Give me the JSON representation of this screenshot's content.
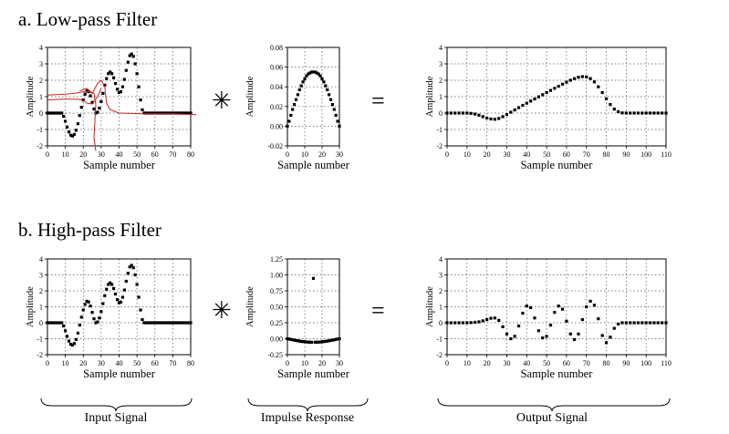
{
  "rows": [
    {
      "title": "a. Low-pass Filter"
    },
    {
      "title": "b. High-pass Filter"
    }
  ],
  "operators": {
    "convolve": "✳",
    "equals": "="
  },
  "braces": [
    {
      "label": "Input Signal"
    },
    {
      "label": "Impulse Response"
    },
    {
      "label": "Output Signal"
    }
  ],
  "colors": {
    "points": "#000000",
    "grid": "#555555",
    "annotation": "#cc2222"
  },
  "chart_data": [
    {
      "id": "lp_input",
      "type": "scatter",
      "xlabel": "Sample number",
      "ylabel": "Amplitude",
      "xlim": [
        0,
        80
      ],
      "ylim": [
        -2,
        4
      ],
      "xticks": [
        0,
        10,
        20,
        30,
        40,
        50,
        60,
        70,
        80
      ],
      "yticks": [
        -2,
        -1,
        0,
        1,
        2,
        3,
        4
      ],
      "grid": true,
      "series": [
        {
          "x": [
            0,
            1,
            2,
            3,
            4,
            5,
            6,
            7,
            8,
            9,
            10,
            11,
            12,
            13,
            14,
            15,
            16,
            17,
            18,
            19,
            20,
            21,
            22,
            23,
            24,
            25,
            26,
            27,
            28,
            29,
            30,
            31,
            32,
            33,
            34,
            35,
            36,
            37,
            38,
            39,
            40,
            41,
            42,
            43,
            44,
            45,
            46,
            47,
            48,
            49,
            50,
            51,
            52,
            53,
            54,
            55,
            56,
            57,
            58,
            59,
            60,
            61,
            62,
            63,
            64,
            65,
            66,
            67,
            68,
            69,
            70,
            71,
            72,
            73,
            74,
            75,
            76,
            77,
            78,
            79,
            80
          ],
          "y": [
            0,
            0,
            0,
            0,
            0,
            0,
            0,
            0,
            0,
            -0.2,
            -0.5,
            -0.85,
            -1.15,
            -1.35,
            -1.4,
            -1.3,
            -1.05,
            -0.65,
            -0.15,
            0.35,
            0.8,
            1.15,
            1.35,
            1.3,
            1.05,
            0.65,
            0.25,
            0,
            0.05,
            0.3,
            0.7,
            1.2,
            1.7,
            2.1,
            2.4,
            2.5,
            2.4,
            2.15,
            1.8,
            1.45,
            1.25,
            1.3,
            1.6,
            2.05,
            2.6,
            3.1,
            3.5,
            3.6,
            3.45,
            3.0,
            2.4,
            1.6,
            0.8,
            0.2,
            0,
            0,
            0,
            0,
            0,
            0,
            0,
            0,
            0,
            0,
            0,
            0,
            0,
            0,
            0,
            0,
            0,
            0,
            0,
            0,
            0,
            0,
            0,
            0,
            0,
            0,
            0
          ]
        }
      ],
      "annotation_note": "red hand-drawn strokes overlay"
    },
    {
      "id": "lp_kernel",
      "type": "scatter",
      "xlabel": "Sample number",
      "ylabel": "Amplitude",
      "xlim": [
        0,
        30
      ],
      "ylim": [
        -0.02,
        0.08
      ],
      "xticks": [
        0,
        10,
        20,
        30
      ],
      "yticks": [
        -0.02,
        0.0,
        0.02,
        0.04,
        0.06,
        0.08
      ],
      "ytick_labels": [
        "-0.02",
        "0.00",
        "0.02",
        "0.04",
        "0.06",
        "0.08"
      ],
      "grid": true,
      "series": [
        {
          "x": [
            0,
            1,
            2,
            3,
            4,
            5,
            6,
            7,
            8,
            9,
            10,
            11,
            12,
            13,
            14,
            15,
            16,
            17,
            18,
            19,
            20,
            21,
            22,
            23,
            24,
            25,
            26,
            27,
            28,
            29,
            30
          ],
          "y": [
            0.0,
            0.005,
            0.011,
            0.017,
            0.022,
            0.027,
            0.032,
            0.037,
            0.041,
            0.045,
            0.048,
            0.051,
            0.053,
            0.054,
            0.055,
            0.055,
            0.055,
            0.054,
            0.053,
            0.051,
            0.048,
            0.045,
            0.041,
            0.037,
            0.032,
            0.027,
            0.022,
            0.017,
            0.011,
            0.005,
            0.0
          ]
        }
      ]
    },
    {
      "id": "lp_output",
      "type": "scatter",
      "xlabel": "Sample number",
      "ylabel": "Amplitude",
      "xlim": [
        0,
        110
      ],
      "ylim": [
        -2,
        4
      ],
      "xticks": [
        0,
        10,
        20,
        30,
        40,
        50,
        60,
        70,
        80,
        90,
        100,
        110
      ],
      "yticks": [
        -2,
        -1,
        0,
        1,
        2,
        3,
        4
      ],
      "grid": true,
      "series": [
        {
          "x": [
            0,
            2,
            4,
            6,
            8,
            10,
            12,
            14,
            16,
            18,
            20,
            22,
            24,
            26,
            28,
            30,
            32,
            34,
            36,
            38,
            40,
            42,
            44,
            46,
            48,
            50,
            52,
            54,
            56,
            58,
            60,
            62,
            64,
            66,
            68,
            70,
            72,
            74,
            76,
            78,
            80,
            82,
            84,
            86,
            88,
            90,
            92,
            94,
            96,
            98,
            100,
            102,
            104,
            106,
            108,
            110
          ],
          "y": [
            0,
            0,
            0,
            0,
            0,
            0,
            -0.02,
            -0.06,
            -0.13,
            -0.22,
            -0.3,
            -0.36,
            -0.38,
            -0.33,
            -0.22,
            -0.09,
            0.05,
            0.19,
            0.33,
            0.47,
            0.6,
            0.73,
            0.86,
            0.99,
            1.12,
            1.25,
            1.38,
            1.51,
            1.63,
            1.76,
            1.88,
            2.0,
            2.1,
            2.18,
            2.22,
            2.2,
            2.1,
            1.9,
            1.6,
            1.25,
            0.87,
            0.52,
            0.24,
            0.08,
            0.01,
            0,
            0,
            0,
            0,
            0,
            0,
            0,
            0,
            0,
            0,
            0
          ]
        }
      ]
    },
    {
      "id": "hp_input",
      "type": "scatter",
      "xlabel": "Sample number",
      "ylabel": "Amplitude",
      "xlim": [
        0,
        80
      ],
      "ylim": [
        -2,
        4
      ],
      "xticks": [
        0,
        10,
        20,
        30,
        40,
        50,
        60,
        70,
        80
      ],
      "yticks": [
        -2,
        -1,
        0,
        1,
        2,
        3,
        4
      ],
      "grid": true,
      "series": [
        {
          "x": [
            0,
            1,
            2,
            3,
            4,
            5,
            6,
            7,
            8,
            9,
            10,
            11,
            12,
            13,
            14,
            15,
            16,
            17,
            18,
            19,
            20,
            21,
            22,
            23,
            24,
            25,
            26,
            27,
            28,
            29,
            30,
            31,
            32,
            33,
            34,
            35,
            36,
            37,
            38,
            39,
            40,
            41,
            42,
            43,
            44,
            45,
            46,
            47,
            48,
            49,
            50,
            51,
            52,
            53,
            54,
            55,
            56,
            57,
            58,
            59,
            60,
            61,
            62,
            63,
            64,
            65,
            66,
            67,
            68,
            69,
            70,
            71,
            72,
            73,
            74,
            75,
            76,
            77,
            78,
            79,
            80
          ],
          "y": [
            0,
            0,
            0,
            0,
            0,
            0,
            0,
            0,
            0,
            -0.2,
            -0.5,
            -0.85,
            -1.15,
            -1.35,
            -1.4,
            -1.3,
            -1.05,
            -0.65,
            -0.15,
            0.35,
            0.8,
            1.15,
            1.35,
            1.3,
            1.05,
            0.65,
            0.25,
            0,
            0.05,
            0.3,
            0.7,
            1.2,
            1.7,
            2.1,
            2.4,
            2.5,
            2.4,
            2.15,
            1.8,
            1.45,
            1.25,
            1.3,
            1.6,
            2.05,
            2.6,
            3.1,
            3.5,
            3.6,
            3.45,
            3.0,
            2.4,
            1.6,
            0.8,
            0.2,
            0,
            0,
            0,
            0,
            0,
            0,
            0,
            0,
            0,
            0,
            0,
            0,
            0,
            0,
            0,
            0,
            0,
            0,
            0,
            0,
            0,
            0,
            0,
            0,
            0,
            0,
            0
          ]
        }
      ]
    },
    {
      "id": "hp_kernel",
      "type": "scatter",
      "xlabel": "Sample number",
      "ylabel": "Amplitude",
      "xlim": [
        0,
        30
      ],
      "ylim": [
        -0.25,
        1.25
      ],
      "xticks": [
        0,
        10,
        20,
        30
      ],
      "yticks": [
        -0.25,
        0.0,
        0.25,
        0.5,
        0.75,
        1.0,
        1.25
      ],
      "ytick_labels": [
        "-0.25",
        "0.00",
        "0.25",
        "0.50",
        "0.75",
        "1.00",
        "1.25"
      ],
      "grid": true,
      "series": [
        {
          "x": [
            0,
            1,
            2,
            3,
            4,
            5,
            6,
            7,
            8,
            9,
            10,
            11,
            12,
            13,
            14,
            15,
            16,
            17,
            18,
            19,
            20,
            21,
            22,
            23,
            24,
            25,
            26,
            27,
            28,
            29,
            30
          ],
          "y": [
            0.0,
            -0.005,
            -0.011,
            -0.017,
            -0.022,
            -0.027,
            -0.032,
            -0.037,
            -0.041,
            -0.045,
            -0.048,
            -0.051,
            -0.053,
            -0.054,
            -0.055,
            0.945,
            -0.055,
            -0.054,
            -0.053,
            -0.051,
            -0.048,
            -0.045,
            -0.041,
            -0.037,
            -0.032,
            -0.027,
            -0.022,
            -0.017,
            -0.011,
            -0.005,
            0.0
          ]
        }
      ]
    },
    {
      "id": "hp_output",
      "type": "scatter",
      "xlabel": "Sample number",
      "ylabel": "Amplitude",
      "xlim": [
        0,
        110
      ],
      "ylim": [
        -2,
        4
      ],
      "xticks": [
        0,
        10,
        20,
        30,
        40,
        50,
        60,
        70,
        80,
        90,
        100,
        110
      ],
      "yticks": [
        -2,
        -1,
        0,
        1,
        2,
        3,
        4
      ],
      "grid": true,
      "series": [
        {
          "x": [
            0,
            2,
            4,
            6,
            8,
            10,
            12,
            14,
            16,
            18,
            20,
            22,
            24,
            26,
            28,
            30,
            32,
            34,
            36,
            38,
            40,
            42,
            44,
            46,
            48,
            50,
            52,
            54,
            56,
            58,
            60,
            62,
            64,
            66,
            68,
            70,
            72,
            74,
            76,
            78,
            80,
            82,
            84,
            86,
            88,
            90,
            92,
            94,
            96,
            98,
            100,
            102,
            104,
            106,
            108,
            110
          ],
          "y": [
            0,
            0,
            0,
            0,
            0,
            0,
            0.01,
            0.03,
            0.06,
            0.12,
            0.2,
            0.28,
            0.3,
            0.15,
            -0.25,
            -0.7,
            -1.0,
            -0.85,
            -0.2,
            0.6,
            1.05,
            0.95,
            0.3,
            -0.5,
            -0.95,
            -0.85,
            -0.15,
            0.65,
            1.05,
            0.85,
            0.1,
            -0.7,
            -1.05,
            -0.7,
            0.2,
            1.0,
            1.35,
            1.1,
            0.25,
            -0.8,
            -1.25,
            -0.9,
            -0.35,
            -0.08,
            0,
            0,
            0,
            0,
            0,
            0,
            0,
            0,
            0,
            0,
            0,
            0
          ]
        }
      ]
    }
  ]
}
